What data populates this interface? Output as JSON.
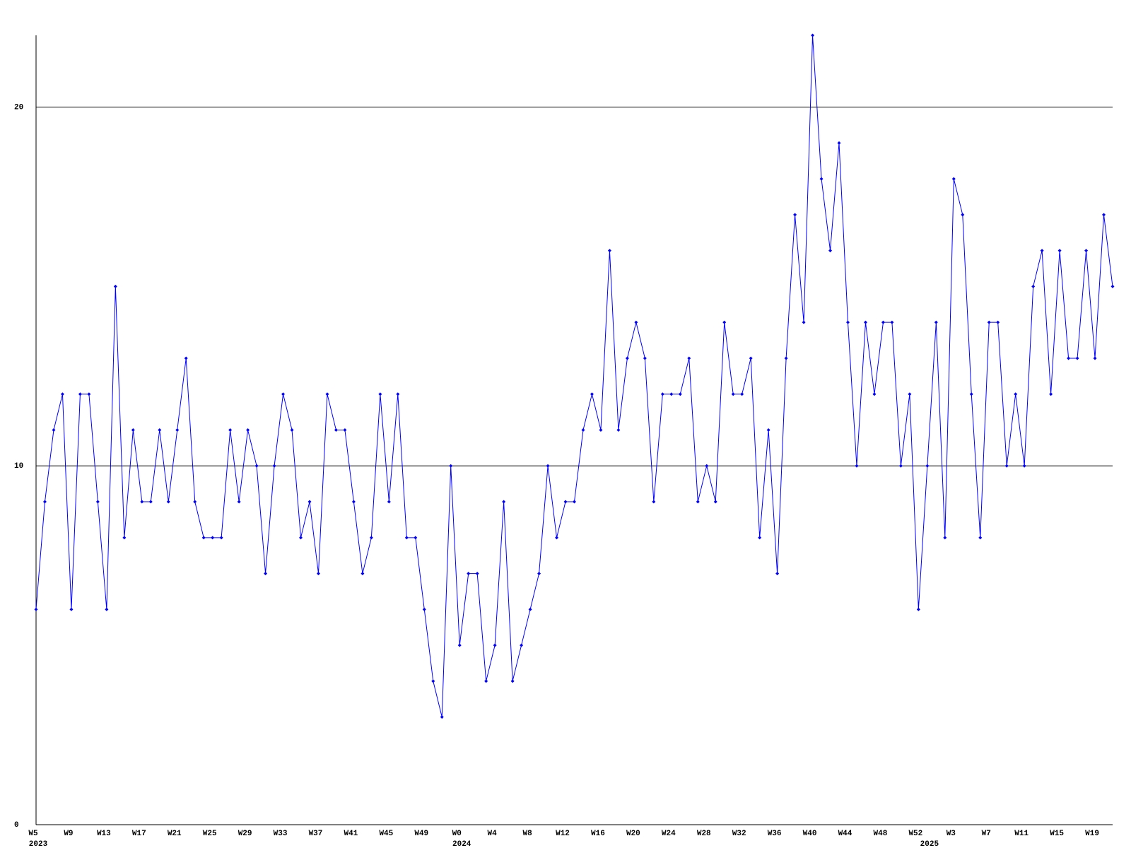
{
  "chart_data": {
    "type": "line",
    "categories": [
      "W5",
      null,
      null,
      null,
      "W9",
      null,
      null,
      null,
      "W13",
      null,
      null,
      null,
      "W17",
      null,
      null,
      null,
      "W21",
      null,
      null,
      null,
      "W25",
      null,
      null,
      null,
      "W29",
      null,
      null,
      null,
      "W33",
      null,
      null,
      null,
      "W37",
      null,
      null,
      null,
      "W41",
      null,
      null,
      null,
      "W45",
      null,
      null,
      null,
      "W49",
      null,
      null,
      null,
      "W0",
      null,
      null,
      null,
      "W4",
      null,
      null,
      null,
      "W8",
      null,
      null,
      null,
      "W12",
      null,
      null,
      null,
      "W16",
      null,
      null,
      null,
      "W20",
      null,
      null,
      null,
      "W24",
      null,
      null,
      null,
      "W28",
      null,
      null,
      null,
      "W32",
      null,
      null,
      null,
      "W36",
      null,
      null,
      null,
      "W40",
      null,
      null,
      null,
      "W44",
      null,
      null,
      null,
      "W48",
      null,
      null,
      null,
      "W52",
      null,
      null,
      null,
      "W3",
      null,
      null,
      null,
      "W7",
      null,
      null,
      null,
      "W11",
      null,
      null,
      null,
      "W15",
      null,
      null,
      null,
      "W19",
      null,
      null
    ],
    "x_group_labels": [
      "2023",
      null,
      null,
      null,
      null,
      null,
      null,
      null,
      null,
      null,
      null,
      null,
      null,
      null,
      null,
      null,
      null,
      null,
      null,
      null,
      null,
      null,
      null,
      null,
      null,
      null,
      null,
      null,
      null,
      null,
      null,
      null,
      null,
      null,
      null,
      null,
      null,
      null,
      null,
      null,
      null,
      null,
      null,
      null,
      null,
      null,
      null,
      null,
      "2024",
      null,
      null,
      null,
      null,
      null,
      null,
      null,
      null,
      null,
      null,
      null,
      null,
      null,
      null,
      null,
      null,
      null,
      null,
      null,
      null,
      null,
      null,
      null,
      null,
      null,
      null,
      null,
      null,
      null,
      null,
      null,
      null,
      null,
      null,
      null,
      null,
      null,
      null,
      null,
      null,
      null,
      null,
      null,
      null,
      null,
      null,
      null,
      null,
      null,
      null,
      null,
      null,
      "2025",
      null,
      null,
      null,
      null,
      null,
      null,
      null,
      null,
      null,
      null,
      null,
      null,
      null,
      null,
      null,
      null,
      null,
      null,
      null,
      null,
      null
    ],
    "series": [
      {
        "color": "#0000ff",
        "values": [
          6,
          9,
          11,
          12,
          6,
          12,
          12,
          9,
          6,
          15,
          8,
          11,
          9,
          9,
          11,
          9,
          11,
          13,
          9,
          8,
          8,
          8,
          11,
          9,
          11,
          10,
          7,
          10,
          12,
          11,
          8,
          9,
          7,
          12,
          11,
          11,
          9,
          7,
          8,
          12,
          9,
          12,
          8,
          8,
          6,
          4,
          3,
          10,
          5,
          7,
          7,
          4,
          5,
          9,
          4,
          5,
          6,
          7,
          10,
          8,
          9,
          9,
          11,
          12,
          11,
          16,
          11,
          13,
          14,
          13,
          9,
          12,
          12,
          12,
          13,
          9,
          10,
          9,
          14,
          12,
          12,
          13,
          8,
          11,
          7,
          13,
          17,
          14,
          22,
          18,
          16,
          19,
          14,
          10,
          14,
          12,
          14,
          14,
          10,
          12,
          6,
          10,
          14,
          8,
          18,
          17,
          12,
          8,
          14,
          14,
          10,
          12,
          10,
          15,
          16,
          12,
          16,
          13,
          13,
          16,
          13,
          17,
          15
        ]
      }
    ],
    "ylim": [
      0,
      22
    ],
    "yticks": [
      0,
      10,
      20
    ],
    "grid": true,
    "grid_color": "#000000"
  }
}
